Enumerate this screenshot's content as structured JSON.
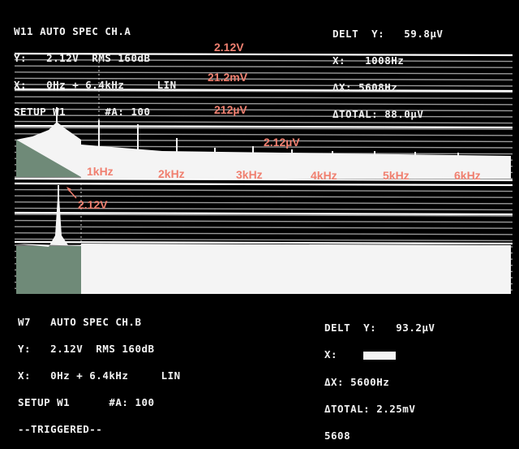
{
  "channel_a": {
    "header": [
      "W11 AUTO SPEC CH.A",
      "Y:   2.12V  RMS 160dB",
      "X:   0Hz + 6.4kHz     LIN",
      "SETUP W1      #A: 100"
    ],
    "readout": [
      "DELT  Y:   59.8µV",
      "X:   1008Hz",
      "ΔX: 5608Hz",
      "ΔTOTAL: 88.0µV"
    ]
  },
  "channel_b": {
    "header": [
      "W7   AUTO SPEC CH.B",
      "Y:   2.12V  RMS 160dB",
      "X:   0Hz + 6.4kHz     LIN",
      "SETUP W1      #A: 100",
      "--TRIGGERED--"
    ],
    "readout": [
      "DELT  Y:   93.2µV",
      "X:",
      "ΔX: 5600Hz",
      "ΔTOTAL: 2.25mV",
      "5608"
    ]
  },
  "annotations": {
    "levels": [
      "2.12V",
      "21.2mV",
      "212µV",
      "2.12µV"
    ],
    "frequencies": [
      "1kHz",
      "2kHz",
      "3kHz",
      "4kHz",
      "5kHz",
      "6kHz"
    ],
    "peak_b": "2.12V"
  },
  "colors": {
    "trace": "#f4f4f4",
    "grid": "#9a9a9a",
    "shade": "#6f8a78",
    "annotation": "#f08070"
  }
}
